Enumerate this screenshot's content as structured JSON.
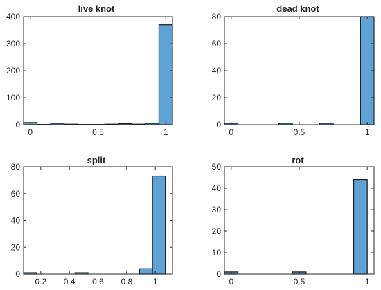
{
  "chart_data": [
    {
      "type": "bar",
      "title": "live knot",
      "bar_color": "#5fa2d6",
      "bins": [
        {
          "x0": -0.05,
          "x1": 0.05,
          "value": 8
        },
        {
          "x0": 0.05,
          "x1": 0.15,
          "value": 1
        },
        {
          "x0": 0.15,
          "x1": 0.25,
          "value": 5
        },
        {
          "x0": 0.25,
          "x1": 0.35,
          "value": 2
        },
        {
          "x0": 0.35,
          "x1": 0.45,
          "value": 1
        },
        {
          "x0": 0.45,
          "x1": 0.55,
          "value": 1
        },
        {
          "x0": 0.55,
          "x1": 0.65,
          "value": 2
        },
        {
          "x0": 0.65,
          "x1": 0.75,
          "value": 4
        },
        {
          "x0": 0.75,
          "x1": 0.85,
          "value": 2
        },
        {
          "x0": 0.85,
          "x1": 0.95,
          "value": 5
        },
        {
          "x0": 0.95,
          "x1": 1.05,
          "value": 370
        }
      ],
      "xlim": [
        -0.05,
        1.05
      ],
      "ylim": [
        0,
        400
      ],
      "xticks": [
        {
          "v": 0,
          "label": "0"
        },
        {
          "v": 0.5,
          "label": "0.5"
        },
        {
          "v": 1,
          "label": "1"
        }
      ],
      "yticks": [
        {
          "v": 0,
          "label": "0"
        },
        {
          "v": 100,
          "label": "100"
        },
        {
          "v": 200,
          "label": "200"
        },
        {
          "v": 300,
          "label": "300"
        },
        {
          "v": 400,
          "label": "400"
        }
      ]
    },
    {
      "type": "bar",
      "title": "dead knot",
      "bar_color": "#5fa2d6",
      "bins": [
        {
          "x0": -0.05,
          "x1": 0.05,
          "value": 1
        },
        {
          "x0": 0.35,
          "x1": 0.45,
          "value": 1
        },
        {
          "x0": 0.65,
          "x1": 0.75,
          "value": 1
        },
        {
          "x0": 0.95,
          "x1": 1.05,
          "value": 80
        }
      ],
      "xlim": [
        -0.05,
        1.05
      ],
      "ylim": [
        0,
        80
      ],
      "xticks": [
        {
          "v": 0,
          "label": "0"
        },
        {
          "v": 0.5,
          "label": "0.5"
        },
        {
          "v": 1,
          "label": "1"
        }
      ],
      "yticks": [
        {
          "v": 0,
          "label": "0"
        },
        {
          "v": 20,
          "label": "20"
        },
        {
          "v": 40,
          "label": "40"
        },
        {
          "v": 60,
          "label": "60"
        },
        {
          "v": 80,
          "label": "80"
        }
      ]
    },
    {
      "type": "bar",
      "title": "split",
      "bar_color": "#5fa2d6",
      "bins": [
        {
          "x0": 0.08,
          "x1": 0.17,
          "value": 1
        },
        {
          "x0": 0.44,
          "x1": 0.53,
          "value": 1
        },
        {
          "x0": 0.89,
          "x1": 0.98,
          "value": 4
        },
        {
          "x0": 0.98,
          "x1": 1.07,
          "value": 73
        }
      ],
      "xlim": [
        0.08,
        1.12
      ],
      "ylim": [
        0,
        80
      ],
      "xticks": [
        {
          "v": 0.2,
          "label": "0.2"
        },
        {
          "v": 0.4,
          "label": "0.4"
        },
        {
          "v": 0.6,
          "label": "0.6"
        },
        {
          "v": 0.8,
          "label": "0.8"
        },
        {
          "v": 1,
          "label": "1"
        }
      ],
      "yticks": [
        {
          "v": 0,
          "label": "0"
        },
        {
          "v": 20,
          "label": "20"
        },
        {
          "v": 40,
          "label": "40"
        },
        {
          "v": 60,
          "label": "60"
        },
        {
          "v": 80,
          "label": "80"
        }
      ]
    },
    {
      "type": "bar",
      "title": "rot",
      "bar_color": "#5fa2d6",
      "bins": [
        {
          "x0": -0.05,
          "x1": 0.05,
          "value": 1
        },
        {
          "x0": 0.45,
          "x1": 0.55,
          "value": 1
        },
        {
          "x0": 0.9,
          "x1": 1.0,
          "value": 44
        }
      ],
      "xlim": [
        -0.05,
        1.05
      ],
      "ylim": [
        0,
        50
      ],
      "xticks": [
        {
          "v": 0,
          "label": "0"
        },
        {
          "v": 0.5,
          "label": "0.5"
        },
        {
          "v": 1,
          "label": "1"
        }
      ],
      "yticks": [
        {
          "v": 0,
          "label": "0"
        },
        {
          "v": 10,
          "label": "10"
        },
        {
          "v": 20,
          "label": "20"
        },
        {
          "v": 30,
          "label": "30"
        },
        {
          "v": 40,
          "label": "40"
        },
        {
          "v": 50,
          "label": "50"
        }
      ]
    }
  ]
}
